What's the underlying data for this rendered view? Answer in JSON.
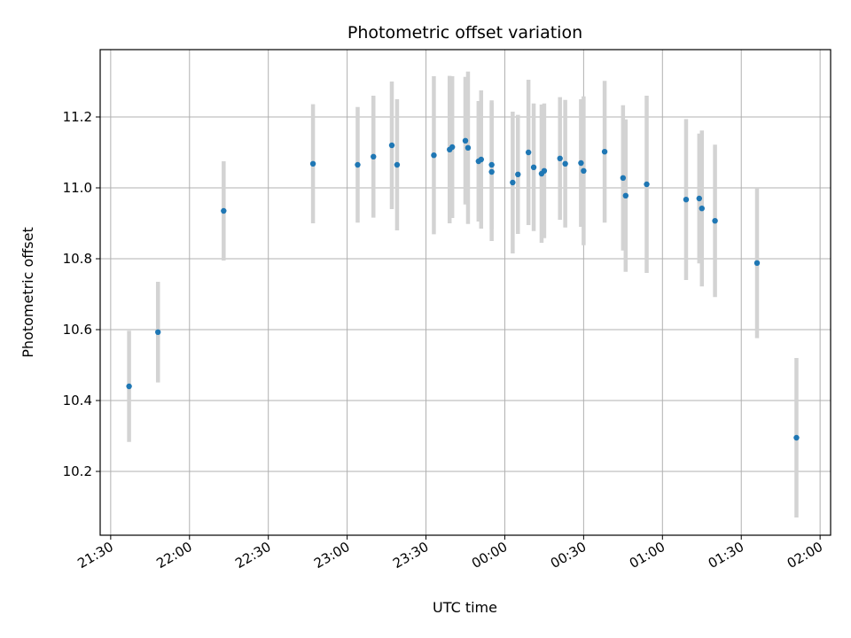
{
  "chart_data": {
    "type": "scatter",
    "title": "Photometric offset variation",
    "xlabel": "UTC time",
    "ylabel": "Photometric offset",
    "grid": true,
    "x_ticks": [
      "21:30",
      "22:00",
      "22:30",
      "23:00",
      "23:30",
      "00:00",
      "00:30",
      "01:00",
      "01:30",
      "02:00"
    ],
    "y_ticks": [
      10.2,
      10.4,
      10.6,
      10.8,
      11.0,
      11.2
    ],
    "xlim": [
      "21:26",
      "02:04"
    ],
    "ylim": [
      10.02,
      11.39
    ],
    "colors": {
      "marker": "#1f77b4",
      "error_bar": "#d3d3d3",
      "grid": "#b0b0b0"
    },
    "points": [
      {
        "x": "21:37",
        "y": 10.44,
        "err": 0.157
      },
      {
        "x": "21:48",
        "y": 10.593,
        "err": 0.142
      },
      {
        "x": "22:13",
        "y": 10.935,
        "err": 0.14
      },
      {
        "x": "22:47",
        "y": 11.068,
        "err": 0.168
      },
      {
        "x": "23:04",
        "y": 11.065,
        "err": 0.163
      },
      {
        "x": "23:10",
        "y": 11.088,
        "err": 0.172
      },
      {
        "x": "23:17",
        "y": 11.12,
        "err": 0.18
      },
      {
        "x": "23:19",
        "y": 11.065,
        "err": 0.185
      },
      {
        "x": "23:33",
        "y": 11.092,
        "err": 0.223
      },
      {
        "x": "23:39",
        "y": 11.108,
        "err": 0.208
      },
      {
        "x": "23:40",
        "y": 11.115,
        "err": 0.2
      },
      {
        "x": "23:45",
        "y": 11.133,
        "err": 0.18
      },
      {
        "x": "23:46",
        "y": 11.113,
        "err": 0.215
      },
      {
        "x": "23:50",
        "y": 11.075,
        "err": 0.17
      },
      {
        "x": "23:51",
        "y": 11.08,
        "err": 0.195
      },
      {
        "x": "23:55",
        "y": 11.065,
        "err": 0.182
      },
      {
        "x": "23:55",
        "y": 11.045,
        "err": 0.195
      },
      {
        "x": "00:03",
        "y": 11.015,
        "err": 0.2
      },
      {
        "x": "00:05",
        "y": 11.038,
        "err": 0.168
      },
      {
        "x": "00:09",
        "y": 11.1,
        "err": 0.205
      },
      {
        "x": "00:11",
        "y": 11.058,
        "err": 0.18
      },
      {
        "x": "00:14",
        "y": 11.04,
        "err": 0.195
      },
      {
        "x": "00:15",
        "y": 11.048,
        "err": 0.19
      },
      {
        "x": "00:21",
        "y": 11.083,
        "err": 0.173
      },
      {
        "x": "00:23",
        "y": 11.068,
        "err": 0.18
      },
      {
        "x": "00:29",
        "y": 11.07,
        "err": 0.18
      },
      {
        "x": "00:30",
        "y": 11.048,
        "err": 0.21
      },
      {
        "x": "00:38",
        "y": 11.102,
        "err": 0.2
      },
      {
        "x": "00:45",
        "y": 11.028,
        "err": 0.205
      },
      {
        "x": "00:46",
        "y": 10.978,
        "err": 0.215
      },
      {
        "x": "00:54",
        "y": 11.01,
        "err": 0.25
      },
      {
        "x": "01:09",
        "y": 10.967,
        "err": 0.227
      },
      {
        "x": "01:14",
        "y": 10.97,
        "err": 0.183
      },
      {
        "x": "01:15",
        "y": 10.942,
        "err": 0.22
      },
      {
        "x": "01:20",
        "y": 10.907,
        "err": 0.215
      },
      {
        "x": "01:36",
        "y": 10.788,
        "err": 0.212
      },
      {
        "x": "01:51",
        "y": 10.295,
        "err": 0.225
      }
    ]
  }
}
